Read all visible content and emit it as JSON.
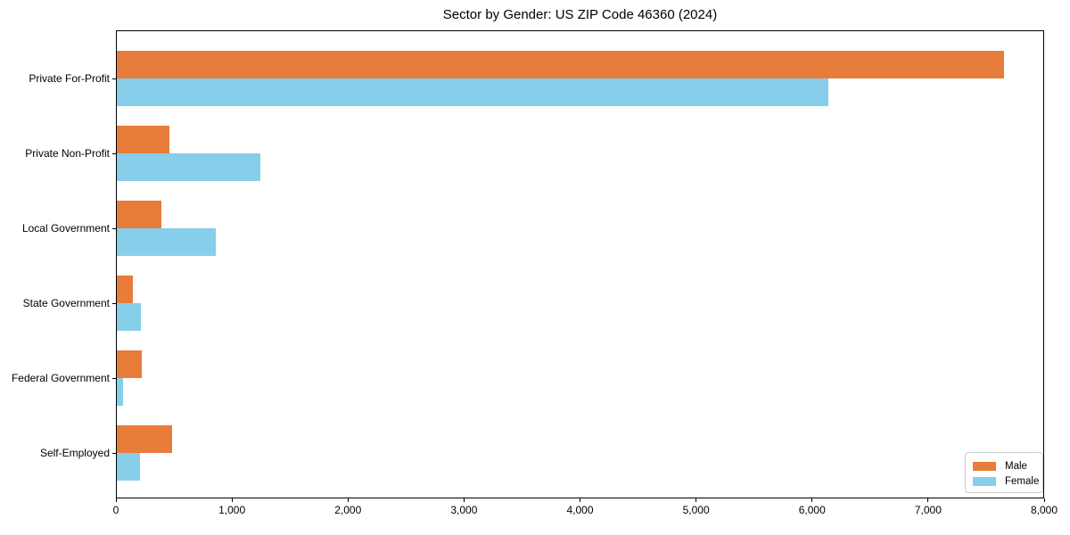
{
  "chart_data": {
    "type": "bar",
    "orientation": "horizontal",
    "title": "Sector by Gender: US ZIP Code 46360 (2024)",
    "categories": [
      "Private For-Profit",
      "Private Non-Profit",
      "Local Government",
      "State Government",
      "Federal Government",
      "Self-Employed"
    ],
    "series": [
      {
        "name": "Male",
        "color": "#e87c3a",
        "values": [
          7650,
          455,
          385,
          140,
          215,
          475
        ]
      },
      {
        "name": "Female",
        "color": "#87ceeb",
        "values": [
          6130,
          1235,
          850,
          205,
          55,
          200
        ]
      }
    ],
    "xlabel": "",
    "ylabel": "",
    "xlim": [
      0,
      8000
    ],
    "x_ticks": [
      0,
      1000,
      2000,
      3000,
      4000,
      5000,
      6000,
      7000,
      8000
    ],
    "x_tick_labels": [
      "0",
      "1,000",
      "2,000",
      "3,000",
      "4,000",
      "5,000",
      "6,000",
      "7,000",
      "8,000"
    ],
    "grid": false,
    "legend_position": "lower right"
  }
}
